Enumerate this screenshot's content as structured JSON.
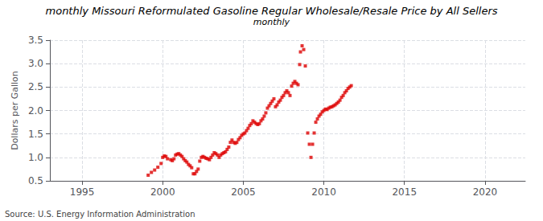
{
  "chart_data": {
    "type": "scatter",
    "title": "monthly Missouri Reformulated Gasoline Regular Wholesale/Resale Price by All Sellers",
    "subtitle": "monthly",
    "annotations": [
      "Source: U.S. Energy Information Administration"
    ],
    "ylabel": "Dollars per Gallon",
    "color": "#dd0000",
    "marker": "square",
    "grid": true,
    "xlim": [
      1993.0,
      2022.5
    ],
    "ylim": [
      0.5,
      3.5
    ],
    "xticks": [
      1995,
      2000,
      2005,
      2010,
      2015,
      2020
    ],
    "yticks": [
      0.5,
      {
        "value": 1.0,
        "label": "1.0"
      },
      1.5,
      {
        "value": 2.0,
        "label": "2.0"
      },
      2.5,
      {
        "value": 3.0,
        "label": "3.0"
      },
      3.5
    ],
    "x": [
      1999.1,
      1999.3,
      1999.5,
      1999.7,
      1999.9,
      2000.0,
      2000.1,
      2000.2,
      2000.3,
      2000.5,
      2000.6,
      2000.7,
      2000.8,
      2000.9,
      2001.0,
      2001.1,
      2001.2,
      2001.3,
      2001.4,
      2001.5,
      2001.6,
      2001.7,
      2001.8,
      2001.9,
      2002.0,
      2002.1,
      2002.2,
      2002.3,
      2002.4,
      2002.5,
      2002.6,
      2002.7,
      2002.8,
      2002.9,
      2003.0,
      2003.1,
      2003.2,
      2003.3,
      2003.4,
      2003.5,
      2003.6,
      2003.7,
      2003.8,
      2003.9,
      2004.0,
      2004.1,
      2004.2,
      2004.3,
      2004.4,
      2004.5,
      2004.6,
      2004.7,
      2004.8,
      2004.9,
      2005.0,
      2005.1,
      2005.2,
      2005.3,
      2005.4,
      2005.5,
      2005.6,
      2005.7,
      2005.8,
      2005.9,
      2006.0,
      2006.1,
      2006.2,
      2006.3,
      2006.4,
      2006.5,
      2006.6,
      2006.7,
      2006.8,
      2006.9,
      2007.0,
      2007.1,
      2007.2,
      2007.3,
      2007.4,
      2007.5,
      2007.6,
      2007.7,
      2007.8,
      2007.9,
      2008.0,
      2008.1,
      2008.2,
      2008.3,
      2008.4,
      2008.5,
      2008.55,
      2008.65,
      2008.75,
      2008.85,
      2009.0,
      2009.1,
      2009.2,
      2009.3,
      2009.4,
      2009.5,
      2009.6,
      2009.7,
      2009.8,
      2009.9,
      2010.0,
      2010.1,
      2010.2,
      2010.3,
      2010.4,
      2010.5,
      2010.6,
      2010.7,
      2010.8,
      2010.9,
      2011.0,
      2011.1,
      2011.2,
      2011.3,
      2011.4,
      2011.5,
      2011.6,
      2011.7
    ],
    "values": [
      0.62,
      0.68,
      0.73,
      0.79,
      0.87,
      1.0,
      1.03,
      1.02,
      0.97,
      0.95,
      0.93,
      0.97,
      1.05,
      1.07,
      1.08,
      1.05,
      1.02,
      0.97,
      0.93,
      0.9,
      0.85,
      0.82,
      0.78,
      0.65,
      0.65,
      0.7,
      0.75,
      0.92,
      1.0,
      1.02,
      1.0,
      0.98,
      0.97,
      0.95,
      1.0,
      1.05,
      1.1,
      1.08,
      1.05,
      1.0,
      1.05,
      1.08,
      1.1,
      1.12,
      1.17,
      1.22,
      1.32,
      1.37,
      1.32,
      1.3,
      1.32,
      1.38,
      1.42,
      1.47,
      1.5,
      1.52,
      1.57,
      1.62,
      1.68,
      1.72,
      1.78,
      1.75,
      1.72,
      1.7,
      1.72,
      1.78,
      1.82,
      1.88,
      1.95,
      2.05,
      2.1,
      2.15,
      2.2,
      2.25,
      2.08,
      2.12,
      2.18,
      2.22,
      2.28,
      2.32,
      2.38,
      2.42,
      2.38,
      2.32,
      2.52,
      2.58,
      2.62,
      2.58,
      2.55,
      2.98,
      3.25,
      3.38,
      3.3,
      2.95,
      1.52,
      1.28,
      1.0,
      1.28,
      1.52,
      1.75,
      1.82,
      1.88,
      1.92,
      1.97,
      2.0,
      2.03,
      2.02,
      2.05,
      2.07,
      2.08,
      2.1,
      2.12,
      2.15,
      2.18,
      2.22,
      2.28,
      2.32,
      2.38,
      2.42,
      2.47,
      2.5,
      2.53
    ]
  }
}
